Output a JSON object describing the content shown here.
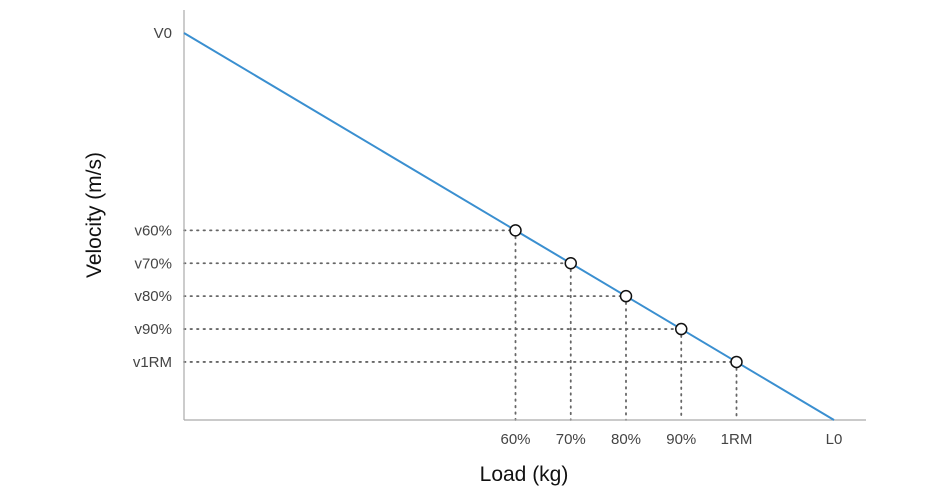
{
  "chart_data": {
    "type": "line",
    "title": "",
    "xlabel": "Load (kg)",
    "ylabel": "Velocity (m/s)",
    "xlim": [
      0,
      1
    ],
    "ylim": [
      0,
      1
    ],
    "grid": false,
    "legend": "none",
    "colors": {
      "line": "#3a8fd0",
      "axis": "#aaaaaa",
      "guide": "#666666",
      "marker_edge": "#111111",
      "marker_fill": "#ffffff"
    },
    "x_ticks": [
      {
        "label": "60%",
        "value": 0.51
      },
      {
        "label": "70%",
        "value": 0.595
      },
      {
        "label": "80%",
        "value": 0.68
      },
      {
        "label": "90%",
        "value": 0.765
      },
      {
        "label": "1RM",
        "value": 0.85
      },
      {
        "label": "L0",
        "value": 1.0
      }
    ],
    "y_ticks": [
      {
        "label": "V0",
        "value": 1.0
      },
      {
        "label": "v60%",
        "value": 0.49
      },
      {
        "label": "v70%",
        "value": 0.405
      },
      {
        "label": "v80%",
        "value": 0.32
      },
      {
        "label": "v90%",
        "value": 0.235
      },
      {
        "label": "v1RM",
        "value": 0.15
      }
    ],
    "line": {
      "x": [
        0,
        1.0
      ],
      "y": [
        1.0,
        0
      ]
    },
    "points": [
      {
        "x": 0.51,
        "y": 0.49
      },
      {
        "x": 0.595,
        "y": 0.405
      },
      {
        "x": 0.68,
        "y": 0.32
      },
      {
        "x": 0.765,
        "y": 0.235
      },
      {
        "x": 0.85,
        "y": 0.15
      }
    ]
  }
}
